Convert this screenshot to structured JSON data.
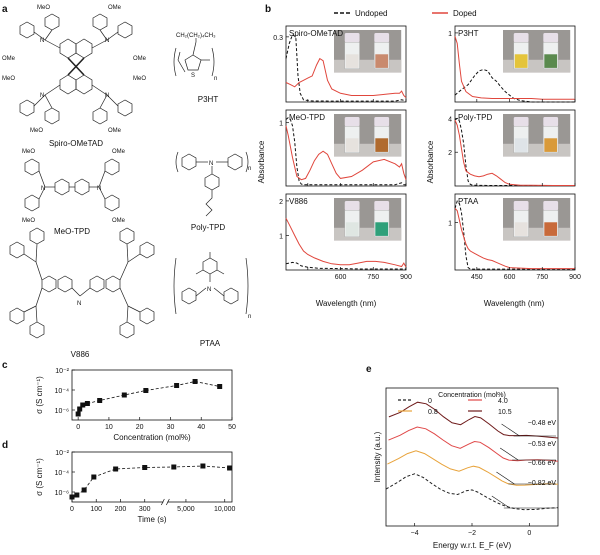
{
  "panels": {
    "a": "a",
    "b": "b",
    "c": "c",
    "d": "d",
    "e": "e"
  },
  "molecules": {
    "spiro": "Spiro-OMeTAD",
    "p3ht": "P3HT",
    "meo_tpd": "MeO-TPD",
    "poly_tpd": "Poly-TPD",
    "v886": "V886",
    "ptaa": "PTAA",
    "meo": "MeO",
    "ome": "OMe",
    "p3ht_chain": "CH₂(CH₂)₄CH₃",
    "s": "S",
    "n": "n"
  },
  "legend_b": {
    "undoped": "Undoped",
    "doped": "Doped"
  },
  "axis_b": {
    "ylabel": "Absorbance",
    "xlabel": "Wavelength (nm)"
  },
  "chart_data": [
    {
      "id": "b-spiro",
      "type": "line",
      "title": "Spiro-OMeTAD",
      "xlim": [
        350,
        900
      ],
      "ylim": [
        0,
        0.35
      ],
      "xticks": [
        "",
        "",
        "",
        "",
        ""
      ],
      "yticks": [
        "0.3"
      ],
      "series": [
        {
          "name": "Undoped",
          "x": [
            350,
            365,
            380,
            395,
            405,
            415,
            430,
            460,
            550,
            700,
            850,
            880,
            900
          ],
          "values": [
            0.2,
            0.27,
            0.31,
            0.3,
            0.12,
            0.04,
            0.01,
            0.005,
            0.004,
            0.004,
            0.004,
            0.01,
            0.005
          ]
        },
        {
          "name": "Doped",
          "x": [
            350,
            370,
            390,
            410,
            430,
            450,
            470,
            490,
            505,
            520,
            540,
            560,
            600,
            650,
            700,
            750,
            800,
            850,
            870,
            880,
            890,
            900
          ],
          "values": [
            0.09,
            0.08,
            0.07,
            0.09,
            0.1,
            0.11,
            0.12,
            0.17,
            0.2,
            0.19,
            0.1,
            0.06,
            0.04,
            0.03,
            0.03,
            0.03,
            0.035,
            0.04,
            0.04,
            0.05,
            0.03,
            0.02
          ]
        }
      ]
    },
    {
      "id": "b-p3ht",
      "type": "line",
      "title": "P3HT",
      "xlim": [
        350,
        900
      ],
      "ylim": [
        0,
        1.1
      ],
      "xticks": [
        "",
        "",
        "",
        "",
        ""
      ],
      "yticks": [
        "1"
      ],
      "series": [
        {
          "name": "Undoped",
          "x": [
            350,
            380,
            410,
            440,
            460,
            480,
            500,
            520,
            540,
            560,
            580,
            600,
            620,
            650,
            700,
            900
          ],
          "values": [
            0.1,
            0.18,
            0.25,
            0.38,
            0.45,
            0.47,
            0.45,
            0.35,
            0.3,
            0.22,
            0.15,
            0.1,
            0.05,
            0.02,
            0.0,
            0.0
          ]
        },
        {
          "name": "Doped",
          "x": [
            350,
            360,
            370,
            380,
            400,
            430,
            470,
            520,
            560,
            600,
            650,
            700,
            750,
            800,
            850,
            900
          ],
          "values": [
            0.95,
            0.85,
            0.55,
            0.3,
            0.15,
            0.08,
            0.06,
            0.05,
            0.05,
            0.05,
            0.05,
            0.05,
            0.04,
            0.04,
            0.04,
            0.04
          ]
        }
      ]
    },
    {
      "id": "b-meotpd",
      "type": "line",
      "title": "MeO-TPD",
      "xlim": [
        350,
        900
      ],
      "ylim": [
        0,
        1.2
      ],
      "xticks": [
        "",
        "",
        "",
        "",
        ""
      ],
      "yticks": [
        "1"
      ],
      "series": [
        {
          "name": "Undoped",
          "x": [
            350,
            360,
            370,
            380,
            390,
            400,
            410,
            420,
            430,
            500,
            600,
            700,
            850,
            880,
            890,
            900
          ],
          "values": [
            1.05,
            1.08,
            1.05,
            0.95,
            0.7,
            0.3,
            0.08,
            0.03,
            0.02,
            0.02,
            0.02,
            0.02,
            0.02,
            0.05,
            0.02,
            0.02
          ]
        },
        {
          "name": "Doped",
          "x": [
            350,
            360,
            380,
            400,
            420,
            440,
            460,
            480,
            500,
            520,
            540,
            560,
            580,
            600,
            650,
            700,
            750,
            800,
            850,
            870,
            880,
            890,
            900
          ],
          "values": [
            0.95,
            0.8,
            0.45,
            0.15,
            0.1,
            0.12,
            0.25,
            0.4,
            0.5,
            0.55,
            0.5,
            0.35,
            0.2,
            0.12,
            0.15,
            0.25,
            0.38,
            0.42,
            0.35,
            0.3,
            0.35,
            0.2,
            0.1
          ]
        }
      ]
    },
    {
      "id": "b-polytpd",
      "type": "line",
      "title": "Poly-TPD",
      "xlim": [
        350,
        900
      ],
      "ylim": [
        0,
        4.5
      ],
      "xticks": [
        "",
        "",
        "",
        "",
        ""
      ],
      "yticks": [
        "4",
        "2"
      ],
      "series": [
        {
          "name": "Undoped",
          "x": [
            350,
            360,
            370,
            380,
            390,
            400,
            410,
            420,
            430,
            500,
            700,
            900
          ],
          "values": [
            3.9,
            4.0,
            3.85,
            3.3,
            2.5,
            1.2,
            0.3,
            0.1,
            0.05,
            0.03,
            0.03,
            0.03
          ]
        },
        {
          "name": "Doped",
          "x": [
            350,
            360,
            370,
            380,
            390,
            400,
            420,
            440,
            460,
            480,
            500,
            520,
            540,
            560,
            580,
            600,
            650,
            700,
            800,
            900
          ],
          "values": [
            3.9,
            3.6,
            3.0,
            2.2,
            1.4,
            0.9,
            0.7,
            0.6,
            0.55,
            0.6,
            0.7,
            0.75,
            0.6,
            0.4,
            0.2,
            0.1,
            0.05,
            0.04,
            0.03,
            0.03
          ]
        }
      ]
    },
    {
      "id": "b-v886",
      "type": "line",
      "title": "V886",
      "xlim": [
        350,
        900
      ],
      "ylim": [
        0,
        2.2
      ],
      "xticks": [
        "",
        "600",
        "750",
        "900"
      ],
      "yticks": [
        "2",
        "1"
      ],
      "series": [
        {
          "name": "Undoped",
          "x": [
            350,
            380,
            400,
            420,
            450,
            500,
            600,
            700,
            800,
            900
          ],
          "values": [
            0.18,
            0.22,
            0.2,
            0.12,
            0.08,
            0.05,
            0.04,
            0.03,
            0.03,
            0.03
          ]
        },
        {
          "name": "Doped",
          "x": [
            350,
            370,
            390,
            410,
            430,
            450,
            480,
            520,
            560,
            600,
            640,
            680,
            720,
            760,
            800,
            850,
            880,
            890,
            900
          ],
          "values": [
            1.5,
            1.25,
            1.0,
            0.75,
            0.55,
            0.45,
            0.35,
            0.25,
            0.18,
            0.15,
            0.15,
            0.2,
            0.25,
            0.25,
            0.22,
            0.15,
            0.1,
            0.2,
            0.08
          ]
        }
      ]
    },
    {
      "id": "b-ptaa",
      "type": "line",
      "title": "PTAA",
      "xlim": [
        350,
        900
      ],
      "ylim": [
        0,
        1.6
      ],
      "xticks": [
        "450",
        "600",
        "750",
        "900"
      ],
      "yticks": [
        "1"
      ],
      "series": [
        {
          "name": "Undoped",
          "x": [
            350,
            360,
            370,
            380,
            390,
            400,
            410,
            420,
            500,
            700,
            900
          ],
          "values": [
            1.3,
            1.45,
            1.4,
            1.2,
            0.8,
            0.3,
            0.05,
            0.02,
            0.02,
            0.02,
            0.02
          ]
        },
        {
          "name": "Doped",
          "x": [
            350,
            360,
            370,
            380,
            390,
            400,
            410,
            420,
            440,
            460,
            480,
            500,
            520,
            540,
            560,
            580,
            600,
            650,
            700,
            800,
            900
          ],
          "values": [
            1.3,
            1.25,
            1.05,
            0.85,
            0.7,
            0.55,
            0.45,
            0.4,
            0.35,
            0.3,
            0.25,
            0.22,
            0.2,
            0.16,
            0.12,
            0.08,
            0.05,
            0.04,
            0.03,
            0.03,
            0.03
          ]
        }
      ]
    },
    {
      "id": "c",
      "type": "scatter",
      "xlabel": "Concentration (mol%)",
      "ylabel": "σ (S cm⁻¹)",
      "xlim": [
        -2,
        50
      ],
      "ylog": [
        -7,
        -2
      ],
      "xticks": [
        "0",
        "10",
        "20",
        "30",
        "40",
        "50"
      ],
      "yticks": [
        "10⁻⁶",
        "10⁻⁴",
        "10⁻²"
      ],
      "x": [
        0,
        0.5,
        1.5,
        3,
        7,
        15,
        22,
        32,
        38,
        46
      ],
      "values": [
        -6.4,
        -5.9,
        -5.5,
        -5.35,
        -5.05,
        -4.5,
        -4.05,
        -3.55,
        -3.15,
        -3.65
      ]
    },
    {
      "id": "d",
      "type": "scatter",
      "xlabel": "Time (s)",
      "ylabel": "σ (S cm⁻¹)",
      "xpos": [
        0,
        20,
        50,
        90,
        180,
        300,
        420,
        540,
        650
      ],
      "ylog": [
        -7,
        -2
      ],
      "xticks": [
        "0",
        "100",
        "200",
        "300",
        "5,000",
        "10,000"
      ],
      "yticks": [
        "10⁻⁶",
        "10⁻⁴",
        "10⁻²"
      ],
      "x_values": [
        "0",
        "10",
        "30",
        "90",
        "180",
        "300",
        "1,500",
        "5,000",
        "10,000"
      ],
      "values": [
        -6.5,
        -6.3,
        -5.8,
        -4.5,
        -3.7,
        -3.55,
        -3.5,
        -3.4,
        -3.6
      ]
    },
    {
      "id": "e",
      "type": "line",
      "title": "Concentration (mol%)",
      "xlabel": "Energy w.r.t. E_F (eV)",
      "ylabel": "Intensity (a.u.)",
      "xlim": [
        -5,
        1
      ],
      "xticks": [
        "−4",
        "−2",
        "0"
      ],
      "annotations": [
        "−0.48 eV",
        "−0.53 eV",
        "−0.66 eV",
        "−0.82 eV"
      ],
      "series": [
        {
          "name": "0",
          "color": "#222222",
          "dash": true,
          "offset": 0
        },
        {
          "name": "0.8",
          "color": "#e8a33b",
          "offset": 1
        },
        {
          "name": "4.0",
          "color": "#e04848",
          "offset": 2
        },
        {
          "name": "10.5",
          "color": "#6e1a1a",
          "offset": 3
        }
      ]
    }
  ],
  "colors": {
    "undoped": "#111111",
    "doped": "#e0463c"
  }
}
